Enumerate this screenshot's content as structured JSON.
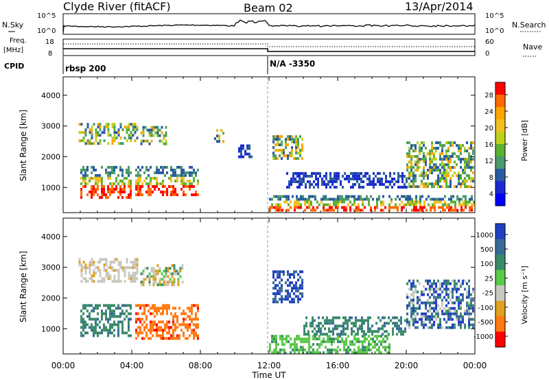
{
  "header": {
    "station": "Clyde River (fitACF)",
    "beam": "Beam 02",
    "date": "13/Apr/2014"
  },
  "top_panels": {
    "nsky_label": "N.Sky",
    "nsky_ticks": [
      "10^5",
      "10^0"
    ],
    "nsearch_label": "N.Search",
    "nsearch_ticks": [
      "10^5",
      "10^0"
    ],
    "freq_label_1": "Freq.",
    "freq_label_2": "[MHz]",
    "freq_ticks": [
      "18",
      "8"
    ],
    "nave_label": "Nave",
    "nave_ticks": [
      "60",
      "0"
    ],
    "cpid_label": "CPID",
    "cpid_entries": [
      {
        "time": "00:00",
        "text": "rbsp 200"
      },
      {
        "time": "12:00",
        "text": "N/A -3350"
      }
    ]
  },
  "chart_data": [
    {
      "type": "heatmap",
      "name": "power",
      "ylabel": "Slant Range [km]",
      "yticks": [
        1000,
        2000,
        3000,
        4000
      ],
      "ylim": [
        180,
        4600
      ],
      "xlim_hours": [
        0,
        24
      ],
      "colorbar": {
        "label": "Power [dB]",
        "ticks": [
          "28",
          "24",
          "20",
          "16",
          "12",
          "8",
          "4"
        ],
        "colors": [
          "#ff0000",
          "#ff6a00",
          "#ffa500",
          "#f0c020",
          "#bcd020",
          "#5ab030",
          "#4a9a6a",
          "#2a5aa0",
          "#1a2ad0",
          "#0000ff"
        ]
      },
      "patches": [
        {
          "t0": 0.9,
          "t1": 4.3,
          "r0": 2450,
          "r1": 3100,
          "level": "mid"
        },
        {
          "t0": 1.0,
          "t1": 4.0,
          "r0": 700,
          "r1": 1700,
          "level": "high"
        },
        {
          "t0": 4.2,
          "t1": 7.9,
          "r0": 750,
          "r1": 1700,
          "level": "high"
        },
        {
          "t0": 4.5,
          "t1": 6.0,
          "r0": 2400,
          "r1": 3000,
          "level": "mid"
        },
        {
          "t0": 8.8,
          "t1": 9.3,
          "r0": 2500,
          "r1": 2900,
          "level": "mid"
        },
        {
          "t0": 10.2,
          "t1": 11.0,
          "r0": 2000,
          "r1": 2400,
          "level": "low"
        },
        {
          "t0": 12.0,
          "t1": 24.0,
          "r0": 250,
          "r1": 750,
          "level": "high"
        },
        {
          "t0": 12.2,
          "t1": 14.0,
          "r0": 1900,
          "r1": 2700,
          "level": "mid"
        },
        {
          "t0": 13.0,
          "t1": 20.0,
          "r0": 1000,
          "r1": 1500,
          "level": "low"
        },
        {
          "t0": 20.0,
          "t1": 23.9,
          "r0": 1000,
          "r1": 2500,
          "level": "mid"
        }
      ]
    },
    {
      "type": "heatmap",
      "name": "velocity",
      "ylabel": "Slant Range [km]",
      "yticks": [
        1000,
        2000,
        3000,
        4000
      ],
      "ylim": [
        180,
        4600
      ],
      "xlim_hours": [
        0,
        24
      ],
      "xlabel": "Time UT",
      "xticks": [
        "00:00",
        "04:00",
        "08:00",
        "12:00",
        "16:00",
        "20:00",
        "00:00"
      ],
      "colorbar": {
        "label": "Velocity [m s⁻¹]",
        "ticks": [
          "1000",
          "500",
          "100",
          "25",
          "-25",
          "-100",
          "-500",
          "-1000"
        ],
        "colors": [
          "#2040c0",
          "#3a6a9a",
          "#3a8a6a",
          "#5ac84a",
          "#c8c8c0",
          "#e0a020",
          "#ff7a10",
          "#ff0000"
        ]
      },
      "patches": [
        {
          "t0": 0.9,
          "t1": 4.3,
          "r0": 2500,
          "r1": 3300,
          "vel": "slow"
        },
        {
          "t0": 1.0,
          "t1": 4.0,
          "r0": 800,
          "r1": 1800,
          "vel": "teal"
        },
        {
          "t0": 4.2,
          "t1": 7.9,
          "r0": 700,
          "r1": 1800,
          "vel": "orange"
        },
        {
          "t0": 4.5,
          "t1": 7.0,
          "r0": 2400,
          "r1": 3100,
          "vel": "mixed"
        },
        {
          "t0": 12.0,
          "t1": 19.0,
          "r0": 250,
          "r1": 800,
          "vel": "green"
        },
        {
          "t0": 12.2,
          "t1": 14.0,
          "r0": 1900,
          "r1": 2900,
          "vel": "blue"
        },
        {
          "t0": 14.0,
          "t1": 20.0,
          "r0": 800,
          "r1": 1400,
          "vel": "teal"
        },
        {
          "t0": 20.0,
          "t1": 23.9,
          "r0": 1000,
          "r1": 2600,
          "vel": "mixed2"
        }
      ]
    }
  ]
}
